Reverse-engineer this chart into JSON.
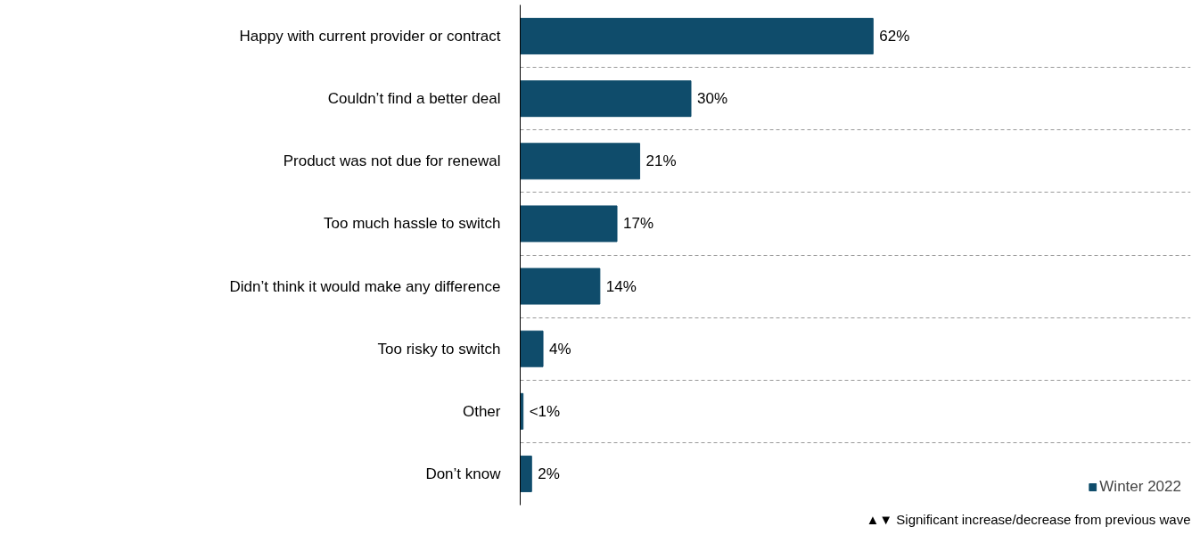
{
  "chart_data": {
    "type": "bar",
    "orientation": "horizontal",
    "categories": [
      "Happy with current provider or contract",
      "Couldn’t find a better deal",
      "Product was not due for renewal",
      "Too much hassle to switch",
      "Didn’t think it would make any difference",
      "Too risky to switch",
      "Other",
      "Don’t know"
    ],
    "series": [
      {
        "name": "Winter 2022",
        "color": "#0f4c6b",
        "values": [
          62,
          30,
          21,
          17,
          14,
          4,
          0.5,
          2
        ],
        "value_labels": [
          "62%",
          "30%",
          "21%",
          "17%",
          "14%",
          "4%",
          "<1%",
          "2%"
        ]
      }
    ],
    "tick_labels": "y",
    "grid": "y",
    "legend": "bottom right",
    "annotations": [
      "▲▼ Significant increase/decrease from previous wave"
    ]
  }
}
